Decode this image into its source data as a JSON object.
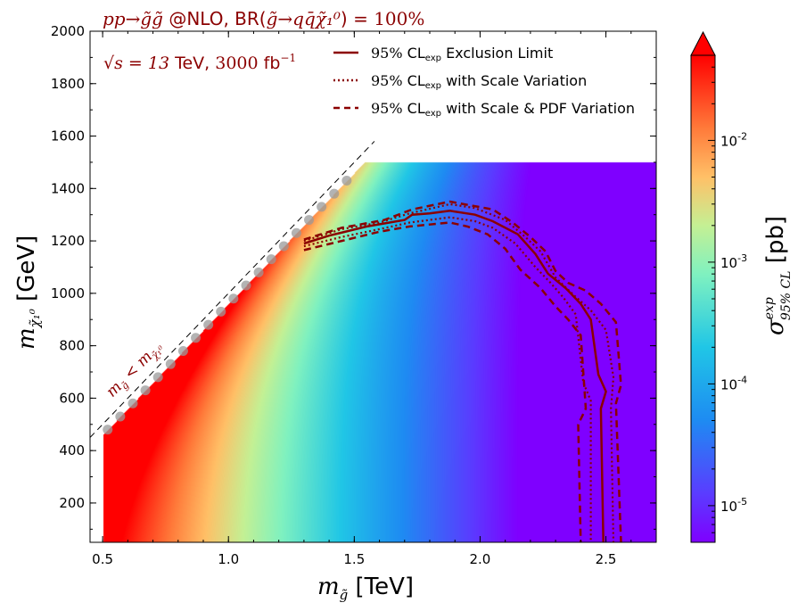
{
  "chart_data": {
    "type": "heatmap",
    "title": "pp→g̃g̃ @NLO, BR(g̃→qq̄χ̃₁⁰) = 100%",
    "subtitle": "√s = 13 TeV, 3000 fb⁻¹",
    "xlabel": "m_g̃ [TeV]",
    "ylabel": "m_χ̃₁⁰ [GeV]",
    "xlim": [
      0.45,
      2.7
    ],
    "ylim": [
      50,
      2000
    ],
    "x_ticks": [
      "0.5",
      "1.0",
      "1.5",
      "2.0",
      "2.5"
    ],
    "x_tick_values": [
      0.5,
      1.0,
      1.5,
      2.0,
      2.5
    ],
    "y_ticks": [
      "200",
      "400",
      "600",
      "800",
      "1000",
      "1200",
      "1400",
      "1600",
      "1800",
      "2000"
    ],
    "y_tick_values": [
      200,
      400,
      600,
      800,
      1000,
      1200,
      1400,
      1600,
      1800,
      2000
    ],
    "diagonal_label": "m_g̃ < m_χ̃₁⁰",
    "diagonal_line": {
      "x": [
        0.45,
        1.58
      ],
      "y": [
        450,
        1580
      ]
    },
    "grid_x_max": 2.7,
    "grid_y_max": 1500,
    "colorbar": {
      "label": "σ exp 95% CL [pb]",
      "scale": "log",
      "range": [
        5e-06,
        0.05
      ],
      "tick_values": [
        1e-05,
        0.0001,
        0.001,
        0.01
      ],
      "tick_labels": [
        [
          "10",
          "-5"
        ],
        [
          "10",
          "-4"
        ],
        [
          "10",
          "-3"
        ],
        [
          "10",
          "-2"
        ]
      ],
      "extend": "max"
    },
    "legend_position": "top-right",
    "series": [
      {
        "name": "95% CL_exp Exclusion Limit",
        "color": "#8b0000",
        "style": "solid",
        "points": [
          [
            1.3,
            1190
          ],
          [
            1.4,
            1220
          ],
          [
            1.55,
            1255
          ],
          [
            1.7,
            1280
          ],
          [
            1.73,
            1300
          ],
          [
            1.8,
            1305
          ],
          [
            1.88,
            1315
          ],
          [
            1.98,
            1300
          ],
          [
            2.05,
            1275
          ],
          [
            2.15,
            1225
          ],
          [
            2.22,
            1150
          ],
          [
            2.27,
            1075
          ],
          [
            2.34,
            1020
          ],
          [
            2.4,
            960
          ],
          [
            2.44,
            900
          ],
          [
            2.47,
            690
          ],
          [
            2.5,
            625
          ],
          [
            2.48,
            560
          ],
          [
            2.49,
            50
          ]
        ]
      },
      {
        "name": "95% CL_exp with Scale Variation",
        "color": "#8b0000",
        "style": "dotted",
        "points_upper": [
          [
            1.3,
            1200
          ],
          [
            1.45,
            1245
          ],
          [
            1.6,
            1270
          ],
          [
            1.72,
            1305
          ],
          [
            1.88,
            1340
          ],
          [
            1.98,
            1325
          ],
          [
            2.1,
            1280
          ],
          [
            2.18,
            1215
          ],
          [
            2.24,
            1160
          ],
          [
            2.3,
            1060
          ],
          [
            2.37,
            995
          ],
          [
            2.44,
            935
          ],
          [
            2.5,
            860
          ],
          [
            2.53,
            680
          ],
          [
            2.52,
            560
          ],
          [
            2.53,
            50
          ]
        ],
        "points_lower": [
          [
            1.3,
            1180
          ],
          [
            1.45,
            1215
          ],
          [
            1.6,
            1245
          ],
          [
            1.72,
            1270
          ],
          [
            1.88,
            1290
          ],
          [
            1.98,
            1275
          ],
          [
            2.05,
            1250
          ],
          [
            2.14,
            1190
          ],
          [
            2.22,
            1100
          ],
          [
            2.28,
            1040
          ],
          [
            2.33,
            985
          ],
          [
            2.38,
            920
          ],
          [
            2.41,
            660
          ],
          [
            2.44,
            590
          ],
          [
            2.44,
            50
          ]
        ]
      },
      {
        "name": "95% CL_exp with Scale & PDF Variation",
        "color": "#8b0000",
        "style": "dashed",
        "points_upper": [
          [
            1.3,
            1205
          ],
          [
            1.45,
            1250
          ],
          [
            1.62,
            1280
          ],
          [
            1.73,
            1320
          ],
          [
            1.88,
            1350
          ],
          [
            2.05,
            1320
          ],
          [
            2.13,
            1270
          ],
          [
            2.2,
            1215
          ],
          [
            2.26,
            1160
          ],
          [
            2.3,
            1085
          ],
          [
            2.35,
            1040
          ],
          [
            2.42,
            1010
          ],
          [
            2.48,
            960
          ],
          [
            2.54,
            890
          ],
          [
            2.56,
            650
          ],
          [
            2.54,
            580
          ],
          [
            2.56,
            50
          ]
        ],
        "points_lower": [
          [
            1.3,
            1165
          ],
          [
            1.45,
            1200
          ],
          [
            1.6,
            1235
          ],
          [
            1.72,
            1255
          ],
          [
            1.88,
            1270
          ],
          [
            1.95,
            1255
          ],
          [
            2.03,
            1225
          ],
          [
            2.1,
            1170
          ],
          [
            2.16,
            1090
          ],
          [
            2.24,
            1020
          ],
          [
            2.3,
            950
          ],
          [
            2.35,
            900
          ],
          [
            2.4,
            840
          ],
          [
            2.42,
            560
          ],
          [
            2.39,
            500
          ],
          [
            2.4,
            50
          ]
        ]
      }
    ]
  },
  "title_text": {
    "process": "pp→g̃g̃",
    "nlo": " @NLO, BR(",
    "decay": "g̃→qq̄χ̃₁⁰",
    "close": ") = ",
    "br_value": "100%"
  },
  "energy_text": {
    "sqrt_s": "√s = 13",
    "tev": " TeV, ",
    "lumi": "3000",
    "fb": " fb",
    "fb_exp": "−1"
  },
  "axis_titles": {
    "x_sym": "m",
    "x_sub": "g̃",
    "x_unit": " [TeV]",
    "y_sym": "m",
    "y_sub": "χ̃₁⁰",
    "y_unit": " [GeV]"
  },
  "diag_text": {
    "lhs": "m",
    "lhs_sub": "g̃",
    "op": " < ",
    "rhs": "m",
    "rhs_sub": "χ̃₁⁰"
  },
  "legend": {
    "entries": [
      {
        "pct": "95%",
        "cl": " CL",
        "sub": "exp",
        "rest": " Exclusion Limit"
      },
      {
        "pct": "95%",
        "cl": " CL",
        "sub": "exp",
        "rest": " with Scale Variation"
      },
      {
        "pct": "95%",
        "cl": " CL",
        "sub": "exp",
        "rest": " with Scale & PDF Variation"
      }
    ]
  },
  "colorbar_title": {
    "sigma": "σ",
    "sup": "exp",
    "sub": "95% CL",
    "unit": " [pb]"
  },
  "colors": {
    "contour": "#8b0000",
    "title": "#8b0000"
  }
}
